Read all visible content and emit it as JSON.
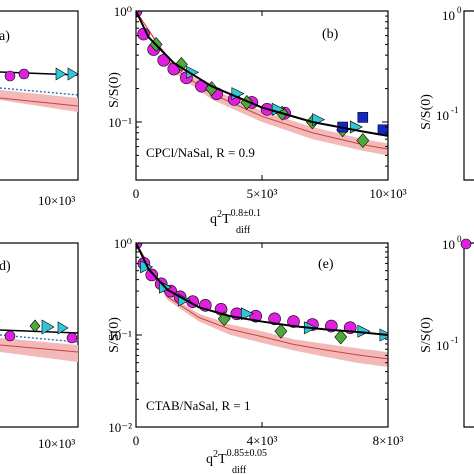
{
  "figure": {
    "ylabel": "S/S(0)",
    "ylabel_right": "S/S(0)",
    "xlabel_b": {
      "base": "q",
      "sup2": "2",
      "T": "T",
      "exp": "0.8±0.1",
      "sub": "diff"
    },
    "xlabel_e": {
      "base": "q",
      "sup2": "2",
      "T": "T",
      "exp": "0.85±0.05",
      "sub": "diff"
    }
  },
  "chart_data": [
    {
      "panel": "a",
      "type": "scatter",
      "label": "a)",
      "xtick_labels": [
        "10×10³"
      ],
      "partial": true
    },
    {
      "panel": "b",
      "type": "scatter",
      "label": "(b)",
      "annotation": "CPCl/NaSal, R = 0.9",
      "xlim": [
        0,
        10000
      ],
      "ylim": [
        0.03,
        1
      ],
      "yscale": "log",
      "xticks": [
        0,
        5000,
        10000
      ],
      "xtick_labels": [
        "0",
        "5×10³",
        "10×10³"
      ],
      "yticks": [
        1,
        0.1
      ],
      "ytick_labels": [
        "10⁰",
        "10⁻¹"
      ],
      "fit": {
        "x": [
          0,
          500,
          1500,
          3000,
          5000,
          7000,
          9000,
          10000
        ],
        "y": [
          1.0,
          0.58,
          0.34,
          0.21,
          0.135,
          0.1,
          0.082,
          0.075
        ]
      },
      "band": {
        "x": [
          0,
          1500,
          3000,
          5000,
          7000,
          9000,
          10000
        ],
        "upper": [
          1.0,
          0.33,
          0.2,
          0.125,
          0.09,
          0.07,
          0.064
        ],
        "lower": [
          1.0,
          0.28,
          0.16,
          0.1,
          0.07,
          0.055,
          0.05
        ]
      },
      "series": [
        {
          "marker": "circle",
          "color": "#e020e0",
          "x": [
            0,
            300,
            700,
            1100,
            1500,
            2000,
            2600,
            3200,
            3900,
            4600,
            5200,
            5900
          ],
          "y": [
            1.0,
            0.62,
            0.45,
            0.36,
            0.3,
            0.25,
            0.21,
            0.18,
            0.16,
            0.15,
            0.13,
            0.12
          ]
        },
        {
          "marker": "diamond",
          "color": "#4fa83c",
          "x": [
            800,
            1800,
            3000,
            4400,
            5800,
            7000,
            8200,
            9000
          ],
          "y": [
            0.5,
            0.33,
            0.2,
            0.15,
            0.12,
            0.1,
            0.085,
            0.068
          ]
        },
        {
          "marker": "triangle-right",
          "color": "#30c8d8",
          "x": [
            2200,
            4000,
            5600,
            7200,
            8700
          ],
          "y": [
            0.28,
            0.18,
            0.13,
            0.105,
            0.09
          ]
        },
        {
          "marker": "square",
          "color": "#1428c8",
          "x": [
            8200,
            9000,
            9800
          ],
          "y": [
            0.09,
            0.11,
            0.085
          ]
        }
      ]
    },
    {
      "panel": "c",
      "type": "scatter",
      "label": "",
      "partial": true,
      "ylabel": "S/S(0)"
    },
    {
      "panel": "d",
      "type": "scatter",
      "label": "d)",
      "xtick_labels": [
        "10×10³"
      ],
      "partial": true
    },
    {
      "panel": "e",
      "type": "scatter",
      "label": "(e)",
      "annotation": "CTAB/NaSal, R = 1",
      "xlim": [
        0,
        8000
      ],
      "ylim": [
        0.01,
        1
      ],
      "yscale": "log",
      "xticks": [
        0,
        4000,
        8000
      ],
      "xtick_labels": [
        "0",
        "4×10³",
        "8×10³"
      ],
      "yticks": [
        1,
        0.1,
        0.01
      ],
      "ytick_labels": [
        "10⁰",
        "10⁻¹",
        "10⁻²"
      ],
      "fit": {
        "x": [
          0,
          400,
          1000,
          2000,
          3000,
          4000,
          5000,
          6000,
          7000,
          8000
        ],
        "y": [
          1.0,
          0.52,
          0.31,
          0.2,
          0.16,
          0.14,
          0.125,
          0.115,
          0.108,
          0.1
        ]
      },
      "band": {
        "x": [
          0,
          1000,
          2000,
          3000,
          4000,
          5000,
          6000,
          7000,
          8000
        ],
        "upper": [
          1.0,
          0.28,
          0.17,
          0.13,
          0.11,
          0.09,
          0.08,
          0.072,
          0.065
        ],
        "lower": [
          1.0,
          0.24,
          0.14,
          0.1,
          0.082,
          0.068,
          0.058,
          0.05,
          0.045
        ]
      },
      "series": [
        {
          "marker": "circle",
          "color": "#e020e0",
          "x": [
            0,
            250,
            500,
            800,
            1100,
            1400,
            1800,
            2200,
            2700,
            3200,
            3800,
            4400,
            5000,
            5600,
            6200,
            6800
          ],
          "y": [
            1.0,
            0.6,
            0.45,
            0.36,
            0.3,
            0.26,
            0.23,
            0.21,
            0.19,
            0.17,
            0.16,
            0.15,
            0.14,
            0.13,
            0.125,
            0.12
          ]
        },
        {
          "marker": "triangle-right",
          "color": "#30c8d8",
          "x": [
            300,
            900,
            1500,
            3500,
            5500,
            7200,
            7900
          ],
          "y": [
            0.55,
            0.33,
            0.24,
            0.17,
            0.12,
            0.11,
            0.1
          ]
        },
        {
          "marker": "diamond",
          "color": "#4fa83c",
          "x": [
            2800,
            4600,
            6500
          ],
          "y": [
            0.15,
            0.11,
            0.095
          ]
        }
      ]
    },
    {
      "panel": "f",
      "type": "scatter",
      "label": "",
      "partial": true,
      "ylabel": "S/S(0)"
    }
  ],
  "colors": {
    "fit": "#000000",
    "band_fill": "#f3b8b8",
    "band_line": "#d04040",
    "dotted": "#2a6fb8"
  }
}
